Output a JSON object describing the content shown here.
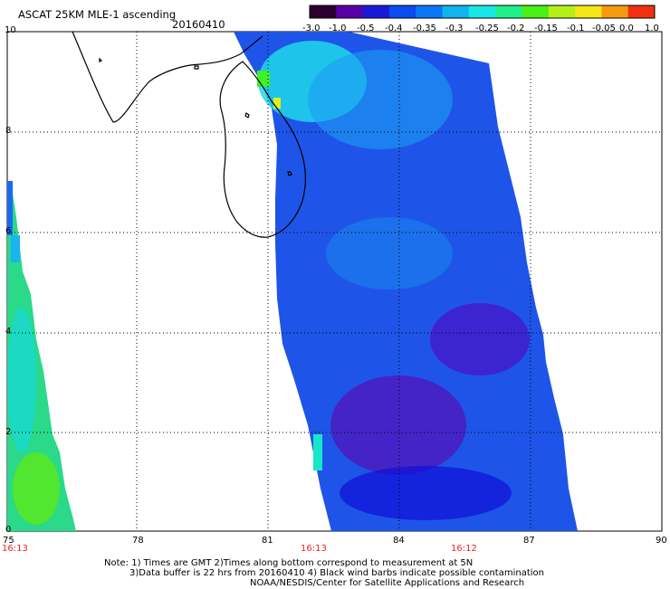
{
  "header": {
    "title": "ASCAT 25KM MLE-1 ascending",
    "date": "20160410"
  },
  "colorbar": {
    "tick_labels": [
      "-3.0",
      "-1.0",
      "-0.5",
      "-0.4",
      "-0.35",
      "-0.3",
      "-0.25",
      "-0.2",
      "-0.15",
      "-0.1",
      "-0.05",
      "0.0",
      "1.0"
    ],
    "colors": [
      "#2b0030",
      "#5a00a8",
      "#1a1ad6",
      "#0a4cf0",
      "#0a78f5",
      "#12b4ef",
      "#18e6e6",
      "#20f08a",
      "#48f018",
      "#b4f018",
      "#f5e618",
      "#f59a10",
      "#f03010"
    ]
  },
  "axes": {
    "y_labels": [
      "10",
      "8",
      "6",
      "4",
      "2",
      "0"
    ],
    "x_labels": [
      "75",
      "78",
      "81",
      "84",
      "87",
      "90"
    ],
    "times": [
      "16:13",
      "16:13",
      "16:12"
    ]
  },
  "notes": {
    "line1": "Note: 1) Times are GMT 2)Times along bottom correspond to measurement at 5N",
    "line2": "3)Data buffer is 22 hrs from 20160410 4) Black wind barbs indicate possible contamination",
    "line3": "NOAA/NESDIS/Center for Satellite Applications and Research"
  }
}
